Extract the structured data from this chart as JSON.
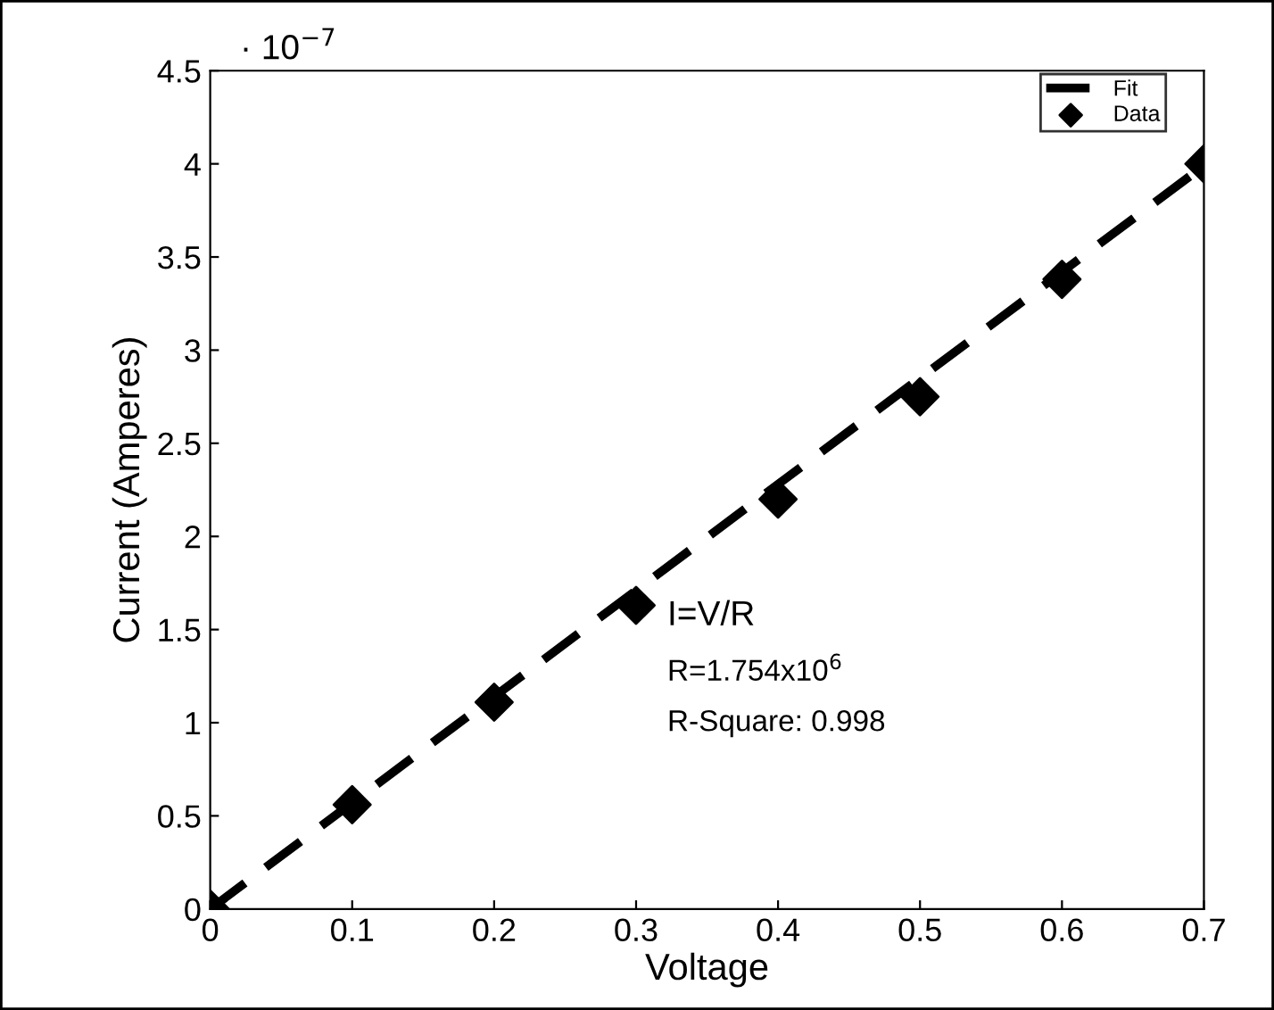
{
  "chart_data": {
    "type": "scatter",
    "xlabel": "Voltage",
    "ylabel": "Current (Amperes)",
    "xlim": [
      0,
      0.7
    ],
    "ylim": [
      0,
      4.5
    ],
    "xticks": [
      0,
      0.1,
      0.2,
      0.3,
      0.4,
      0.5,
      0.6,
      0.7
    ],
    "yticks": [
      0,
      0.5,
      1,
      1.5,
      2,
      2.5,
      3,
      3.5,
      4,
      4.5
    ],
    "series": [
      {
        "name": "Fit",
        "type": "line",
        "color": "#000000",
        "line_style": "dashed",
        "marker": "none",
        "x": [
          0,
          0.7
        ],
        "values": [
          0,
          3.99
        ]
      },
      {
        "name": "Data",
        "color": "#000000",
        "marker": "diamond",
        "x": [
          0,
          0.1,
          0.2,
          0.3,
          0.4,
          0.5,
          0.6,
          0.7
        ],
        "values": [
          0,
          0.56,
          1.11,
          1.63,
          2.2,
          2.75,
          3.38,
          4.0
        ]
      }
    ],
    "annotations": [
      "· 10$^{−7}$",
      "I=V/R",
      "R=1.754x10$^{6}$",
      "R-Square: 0.998"
    ],
    "legend": "top right",
    "grid": false
  }
}
